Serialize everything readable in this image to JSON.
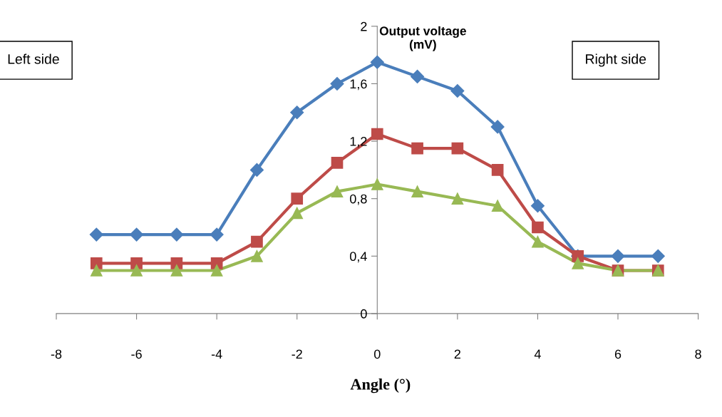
{
  "chart_data": {
    "type": "line",
    "xlabel": "Angle (°)",
    "ylabel": "Output voltage\n(mV)",
    "x": [
      -7,
      -6,
      -5,
      -4,
      -3,
      -2,
      -1,
      0,
      1,
      2,
      3,
      4,
      5,
      6,
      7
    ],
    "series": [
      {
        "color": "#4a7ebb",
        "marker": "diamond",
        "values": [
          0.55,
          0.55,
          0.55,
          0.55,
          1.0,
          1.4,
          1.6,
          1.75,
          1.65,
          1.55,
          1.3,
          0.75,
          0.4,
          0.4,
          0.4
        ]
      },
      {
        "color": "#be4b48",
        "marker": "square",
        "values": [
          0.35,
          0.35,
          0.35,
          0.35,
          0.5,
          0.8,
          1.05,
          1.25,
          1.15,
          1.15,
          1.0,
          0.6,
          0.4,
          0.3,
          0.3
        ]
      },
      {
        "color": "#98b954",
        "marker": "triangle",
        "values": [
          0.3,
          0.3,
          0.3,
          0.3,
          0.4,
          0.7,
          0.85,
          0.9,
          0.85,
          0.8,
          0.75,
          0.5,
          0.35,
          0.3,
          0.3
        ]
      }
    ],
    "xlim": [
      -8,
      8
    ],
    "xticks": [
      -8,
      -6,
      -4,
      -2,
      0,
      2,
      4,
      6,
      8
    ],
    "ylim": [
      0,
      2
    ],
    "yticks": [
      0,
      {
        "value": 0.4,
        "label": "0,4"
      },
      {
        "value": 0.8,
        "label": "0,8"
      },
      {
        "value": 1.2,
        "label": "1,2"
      },
      {
        "value": 1.6,
        "label": "1,6"
      },
      2
    ],
    "annotations": [
      "Left side",
      "Right side"
    ],
    "grid": false,
    "legend": false,
    "line_style": "solid"
  }
}
